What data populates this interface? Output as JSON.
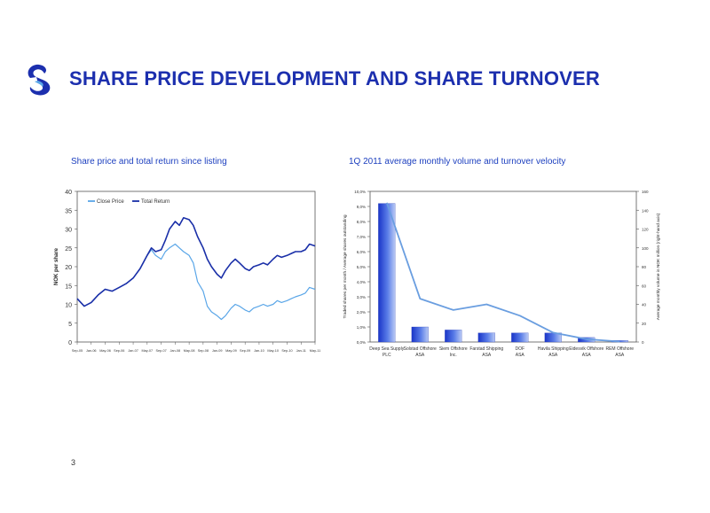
{
  "header": {
    "title": "SHARE PRICE DEVELOPMENT AND SHARE TURNOVER"
  },
  "page_number": "3",
  "colors": {
    "title": "#1c2fae",
    "dark_series": "#1a2fa8",
    "light_series": "#5aa6e8"
  },
  "chart_data": [
    {
      "type": "line",
      "title": "Share price and total return since listing",
      "ylabel": "NOK per share",
      "xlabel": "",
      "ylim": [
        0,
        40
      ],
      "yticks": [
        0,
        5,
        10,
        15,
        20,
        25,
        30,
        35,
        40
      ],
      "x_tick_labels": [
        "Sep-05",
        "Jan-06",
        "May-06",
        "Sep-06",
        "Jan-07",
        "May-07",
        "Sep-07",
        "Jan-08",
        "May-08",
        "Sep-08",
        "Jan-09",
        "May-09",
        "Sep-09",
        "Jan-10",
        "May-10",
        "Sep-10",
        "Jan-11",
        "May-11"
      ],
      "grid": false,
      "legend_position": "top-left",
      "series": [
        {
          "name": "Close Price",
          "color": "#5aa6e8",
          "points": [
            [
              0,
              11.5
            ],
            [
              0.5,
              9.5
            ],
            [
              1,
              10.5
            ],
            [
              1.5,
              12.5
            ],
            [
              2,
              14
            ],
            [
              2.5,
              13.5
            ],
            [
              3,
              14.5
            ],
            [
              3.5,
              15.5
            ],
            [
              4,
              17
            ],
            [
              4.5,
              19.5
            ],
            [
              5,
              23
            ],
            [
              5.3,
              24.5
            ],
            [
              5.6,
              23
            ],
            [
              6,
              22
            ],
            [
              6.3,
              24
            ],
            [
              6.6,
              25
            ],
            [
              7,
              26
            ],
            [
              7.3,
              25
            ],
            [
              7.6,
              24
            ],
            [
              8,
              23
            ],
            [
              8.3,
              21
            ],
            [
              8.6,
              16
            ],
            [
              9,
              13.5
            ],
            [
              9.3,
              9.5
            ],
            [
              9.6,
              8
            ],
            [
              10,
              7
            ],
            [
              10.3,
              6
            ],
            [
              10.6,
              7
            ],
            [
              11,
              9
            ],
            [
              11.3,
              10
            ],
            [
              11.6,
              9.5
            ],
            [
              12,
              8.5
            ],
            [
              12.3,
              8
            ],
            [
              12.6,
              9
            ],
            [
              13,
              9.5
            ],
            [
              13.3,
              10
            ],
            [
              13.6,
              9.5
            ],
            [
              14,
              10
            ],
            [
              14.3,
              11
            ],
            [
              14.6,
              10.5
            ],
            [
              15,
              11
            ],
            [
              15.3,
              11.5
            ],
            [
              15.6,
              12
            ],
            [
              16,
              12.5
            ],
            [
              16.3,
              13
            ],
            [
              16.6,
              14.5
            ],
            [
              17,
              14
            ]
          ]
        },
        {
          "name": "Total Return",
          "color": "#1a2fa8",
          "points": [
            [
              0,
              11.5
            ],
            [
              0.5,
              9.5
            ],
            [
              1,
              10.5
            ],
            [
              1.5,
              12.5
            ],
            [
              2,
              14
            ],
            [
              2.5,
              13.5
            ],
            [
              3,
              14.5
            ],
            [
              3.5,
              15.5
            ],
            [
              4,
              17
            ],
            [
              4.5,
              19.5
            ],
            [
              5,
              23
            ],
            [
              5.3,
              25
            ],
            [
              5.6,
              24
            ],
            [
              6,
              24.5
            ],
            [
              6.3,
              27
            ],
            [
              6.6,
              30
            ],
            [
              7,
              32
            ],
            [
              7.3,
              31
            ],
            [
              7.6,
              33
            ],
            [
              8,
              32.5
            ],
            [
              8.3,
              31
            ],
            [
              8.6,
              28
            ],
            [
              9,
              25
            ],
            [
              9.3,
              22
            ],
            [
              9.6,
              20
            ],
            [
              10,
              18
            ],
            [
              10.3,
              17
            ],
            [
              10.6,
              19
            ],
            [
              11,
              21
            ],
            [
              11.3,
              22
            ],
            [
              11.6,
              21
            ],
            [
              12,
              19.5
            ],
            [
              12.3,
              19
            ],
            [
              12.6,
              20
            ],
            [
              13,
              20.5
            ],
            [
              13.3,
              21
            ],
            [
              13.6,
              20.5
            ],
            [
              14,
              22
            ],
            [
              14.3,
              23
            ],
            [
              14.6,
              22.5
            ],
            [
              15,
              23
            ],
            [
              15.3,
              23.5
            ],
            [
              15.6,
              24
            ],
            [
              16,
              24
            ],
            [
              16.3,
              24.5
            ],
            [
              16.6,
              26
            ],
            [
              17,
              25.5
            ]
          ]
        }
      ]
    },
    {
      "type": "bar",
      "title": "1Q 2011 average monthly volume and turnover velocity",
      "categories": [
        "Deep Sea Supply PLC",
        "Solstad Offshore ASA",
        "Siem Offshore Inc.",
        "Farstad Shipping ASA",
        "DOF ASA",
        "Havila Shipping ASA",
        "Eidesvik Offshore ASA",
        "REM Offshore ASA"
      ],
      "ylabel": "Traded shares per month / Average shares outstanding",
      "y2label": "Average monthly volume in NOK million (right-hand axis)",
      "ylim": [
        0,
        10
      ],
      "yticks": [
        "0,0%",
        "1,0%",
        "2,0%",
        "3,0%",
        "4,0%",
        "5,0%",
        "6,0%",
        "7,0%",
        "8,0%",
        "9,0%",
        "10,0%"
      ],
      "y2lim": [
        0,
        160
      ],
      "y2ticks": [
        0,
        20,
        40,
        60,
        80,
        100,
        120,
        140,
        160
      ],
      "grid": false,
      "series": [
        {
          "type": "bar",
          "axis": "left",
          "color": "#3a55d6",
          "values": [
            9.2,
            1.0,
            0.8,
            0.6,
            0.6,
            0.6,
            0.3,
            0.1
          ]
        },
        {
          "type": "line",
          "axis": "right",
          "color": "#6a9ee0",
          "values": [
            148,
            46,
            34,
            40,
            28,
            10,
            3,
            0.5
          ]
        }
      ]
    }
  ]
}
